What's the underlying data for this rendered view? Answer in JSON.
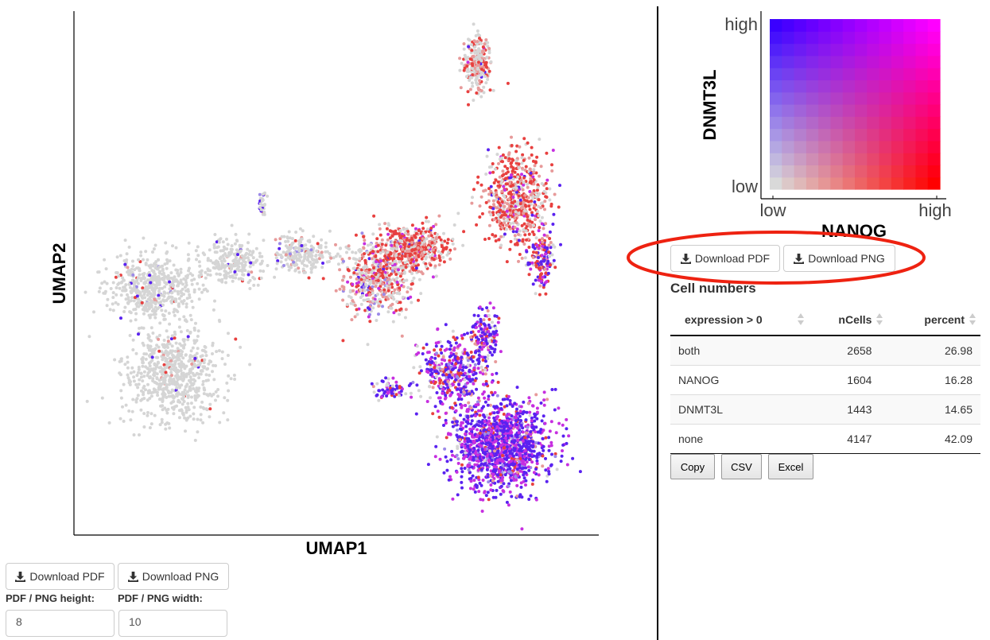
{
  "main_plot": {
    "xlabel": "UMAP1",
    "ylabel": "UMAP2",
    "colors": {
      "none": "#d9d9d9",
      "gene_x": "#ff0000",
      "gene_y": "#3a00ff",
      "both": "#ff00ff"
    }
  },
  "legend": {
    "ylabel": "DNMT3L",
    "xlabel": "NANOG",
    "y_high": "high",
    "y_low": "low",
    "x_low": "low",
    "x_high": "high"
  },
  "left_controls": {
    "download_pdf": "Download PDF",
    "download_png": "Download PNG",
    "height_label": "PDF / PNG height:",
    "width_label": "PDF / PNG width:",
    "height_value": "8",
    "width_value": "10"
  },
  "right_controls": {
    "download_pdf": "Download PDF",
    "download_png": "Download PNG",
    "section_title": "Cell numbers"
  },
  "table": {
    "headers": [
      "expression > 0",
      "nCells",
      "percent"
    ],
    "rows": [
      [
        "both",
        "2658",
        "26.98"
      ],
      [
        "NANOG",
        "1604",
        "16.28"
      ],
      [
        "DNMT3L",
        "1443",
        "14.65"
      ],
      [
        "none",
        "4147",
        "42.09"
      ]
    ]
  },
  "table_buttons": {
    "copy": "Copy",
    "csv": "CSV",
    "excel": "Excel"
  },
  "annotation": {
    "highlight_color": "#ee2211"
  }
}
